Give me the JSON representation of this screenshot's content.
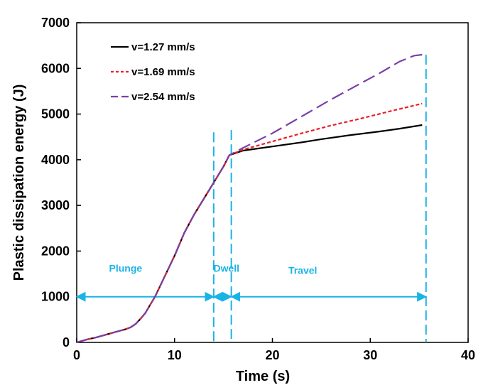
{
  "chart_data": {
    "type": "line",
    "title": "",
    "xlabel": "Time (s)",
    "ylabel": "Plastic dissipation energy (J)",
    "xlim": [
      0,
      40
    ],
    "ylim": [
      0,
      7000
    ],
    "xticks": [
      "0",
      "10",
      "20",
      "30",
      "40"
    ],
    "yticks": [
      "0",
      "1000",
      "2000",
      "3000",
      "4000",
      "5000",
      "6000",
      "7000"
    ],
    "grid": false,
    "legend_placement": "top-left",
    "series": [
      {
        "name": "v=1.27 mm/s",
        "color": "#000000",
        "dash": "solid",
        "x": [
          0,
          1,
          2,
          3,
          4,
          5,
          5.5,
          6,
          6.5,
          7,
          7.5,
          8,
          9,
          10,
          11,
          12,
          13,
          14,
          15,
          15.6,
          17,
          20,
          23,
          25,
          28,
          31,
          33,
          35.3
        ],
        "y": [
          0,
          60,
          110,
          170,
          230,
          290,
          330,
          400,
          510,
          640,
          820,
          1000,
          1450,
          1900,
          2400,
          2800,
          3150,
          3500,
          3850,
          4100,
          4200,
          4290,
          4380,
          4450,
          4540,
          4620,
          4680,
          4760
        ]
      },
      {
        "name": "v=1.69 mm/s",
        "color": "#e8202a",
        "dash": "dotted",
        "x": [
          0,
          1,
          2,
          3,
          4,
          5,
          5.5,
          6,
          6.5,
          7,
          7.5,
          8,
          9,
          10,
          11,
          12,
          13,
          14,
          15,
          15.6,
          17,
          20,
          23,
          26,
          29,
          32,
          35.3
        ],
        "y": [
          0,
          60,
          110,
          170,
          230,
          290,
          330,
          400,
          510,
          640,
          820,
          1000,
          1450,
          1900,
          2400,
          2800,
          3150,
          3500,
          3850,
          4100,
          4220,
          4400,
          4580,
          4750,
          4900,
          5060,
          5230
        ]
      },
      {
        "name": "v=2.54 mm/s",
        "color": "#7b3fa6",
        "dash": "dashed",
        "x": [
          0,
          1,
          2,
          3,
          4,
          5,
          5.5,
          6,
          6.5,
          7,
          7.5,
          8,
          9,
          10,
          11,
          12,
          13,
          14,
          15,
          15.6,
          17,
          20,
          23,
          26,
          29,
          31,
          33,
          34.5,
          35.3
        ],
        "y": [
          0,
          60,
          110,
          170,
          230,
          290,
          330,
          400,
          510,
          640,
          820,
          1000,
          1450,
          1900,
          2400,
          2800,
          3150,
          3500,
          3850,
          4100,
          4260,
          4580,
          4950,
          5320,
          5670,
          5900,
          6150,
          6280,
          6300
        ]
      }
    ],
    "annotations": {
      "phase_color": "#1ab3e6",
      "phases": [
        {
          "label": "Plunge",
          "start": 0,
          "end": 14,
          "label_x": 5,
          "label_y": 1550
        },
        {
          "label": "Dwell",
          "start": 14,
          "end": 15.8,
          "label_x": 15.3,
          "label_y": 1550
        },
        {
          "label": "Travel",
          "start": 15.8,
          "end": 35.7,
          "label_x": 23.1,
          "label_y": 1500
        }
      ],
      "arrow_y": 1000,
      "boundaries": [
        {
          "x": 0,
          "y_top": 1000
        },
        {
          "x": 14,
          "y_top": 4600
        },
        {
          "x": 15.8,
          "y_top": 4650
        },
        {
          "x": 35.7,
          "y_top": 6300
        }
      ]
    }
  }
}
